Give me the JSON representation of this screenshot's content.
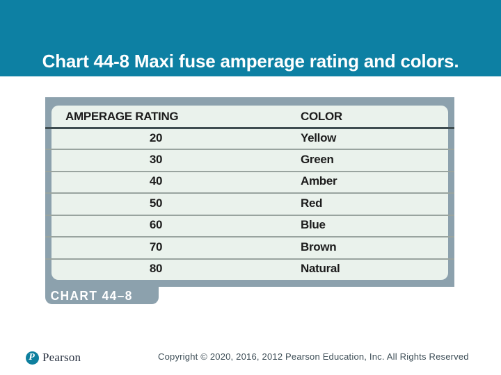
{
  "slide": {
    "title": "Chart 44-8 Maxi fuse amperage rating and colors.",
    "badge_label": "CHART 44–8"
  },
  "table": {
    "headers": [
      "AMPERAGE RATING",
      "COLOR"
    ],
    "rows": [
      [
        "20",
        "Yellow"
      ],
      [
        "30",
        "Green"
      ],
      [
        "40",
        "Amber"
      ],
      [
        "50",
        "Red"
      ],
      [
        "60",
        "Blue"
      ],
      [
        "70",
        "Brown"
      ],
      [
        "80",
        "Natural"
      ]
    ]
  },
  "footer": {
    "logo_text": "Pearson",
    "logo_icon_letter": "P",
    "copyright": "Copyright © 2020, 2016, 2012 Pearson Education, Inc. All Rights Reserved"
  },
  "colors": {
    "header_band": "#0d80a3",
    "title_text": "#ffffff",
    "panel": "#8ca1ad",
    "table_bg": "#eaf2ec",
    "table_text": "#1c1c1c",
    "logo_circle": "#0e7f9e",
    "copyright_text": "#3e4e57"
  },
  "chart_data": {
    "type": "table",
    "title": "Maxi fuse amperage rating and colors",
    "columns": [
      "AMPERAGE RATING",
      "COLOR"
    ],
    "rows": [
      [
        20,
        "Yellow"
      ],
      [
        30,
        "Green"
      ],
      [
        40,
        "Amber"
      ],
      [
        50,
        "Red"
      ],
      [
        60,
        "Blue"
      ],
      [
        70,
        "Brown"
      ],
      [
        80,
        "Natural"
      ]
    ]
  }
}
